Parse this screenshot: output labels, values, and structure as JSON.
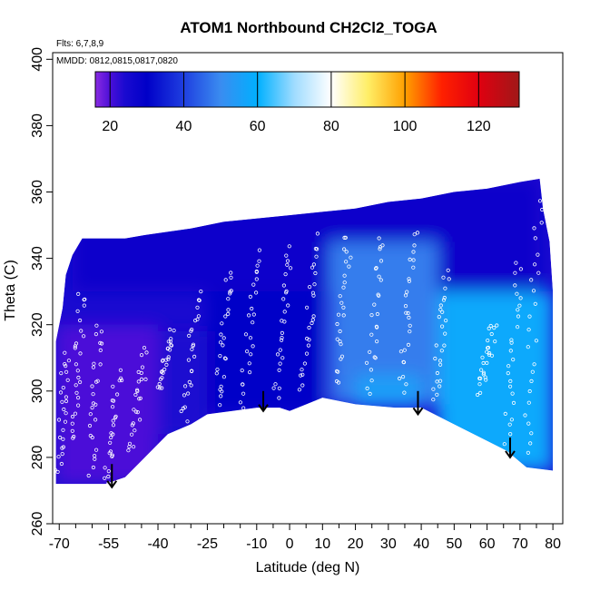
{
  "chart_data": {
    "type": "heatmap",
    "title": "ATOM1 Northbound CH2Cl2_TOGA",
    "flights_note": "Flts: 6,7,8,9",
    "dates_note": "MMDD: 0812,0815,0817,0820",
    "xlabel": "Latitude (deg N)",
    "ylabel": "Theta (C)",
    "xlim": [
      -72,
      83
    ],
    "ylim": [
      260,
      402
    ],
    "x_ticks_major": [
      -70,
      -55,
      -40,
      -25,
      -10,
      0,
      10,
      20,
      30,
      40,
      50,
      60,
      70,
      80
    ],
    "x_tick_labels": [
      "-70",
      "-55",
      "-40",
      "-25",
      "-10",
      "0",
      "10",
      "20",
      "30",
      "40",
      "50",
      "60",
      "70",
      "80"
    ],
    "x_ticks_minor": [
      -65,
      -60,
      -50,
      -45,
      -35,
      -30,
      -20,
      -15,
      -5,
      5,
      15,
      25,
      35,
      45,
      55,
      65,
      75
    ],
    "y_ticks": [
      260,
      280,
      300,
      320,
      340,
      360,
      380,
      400
    ],
    "y_tick_labels": [
      "260",
      "280",
      "300",
      "320",
      "340",
      "360",
      "380",
      "400"
    ],
    "colorbar": {
      "range": [
        16,
        131
      ],
      "ticks": [
        20,
        40,
        60,
        80,
        100,
        120
      ],
      "tick_labels": [
        "20",
        "40",
        "60",
        "80",
        "100",
        "120"
      ],
      "major_lines": [
        20,
        40,
        60,
        80,
        100,
        120
      ],
      "stops": [
        {
          "v": 16,
          "c": "#8a2be2"
        },
        {
          "v": 20,
          "c": "#4b0fd8"
        },
        {
          "v": 24,
          "c": "#1a0ad0"
        },
        {
          "v": 30,
          "c": "#0000c8"
        },
        {
          "v": 40,
          "c": "#1f3fe0"
        },
        {
          "v": 50,
          "c": "#3a8cf0"
        },
        {
          "v": 60,
          "c": "#00b0ff"
        },
        {
          "v": 70,
          "c": "#a0dcff"
        },
        {
          "v": 80,
          "c": "#ffffff"
        },
        {
          "v": 90,
          "c": "#ffee66"
        },
        {
          "v": 100,
          "c": "#ffa000"
        },
        {
          "v": 110,
          "c": "#ff2000"
        },
        {
          "v": 120,
          "c": "#e00010"
        },
        {
          "v": 131,
          "c": "#a01818"
        }
      ]
    },
    "field_lower_boundary": [
      [
        -71,
        272
      ],
      [
        -56,
        272
      ],
      [
        -50,
        274
      ],
      [
        -47,
        277
      ],
      [
        -37,
        287
      ],
      [
        -30,
        290
      ],
      [
        -25,
        293
      ],
      [
        -10,
        295
      ],
      [
        -3,
        295
      ],
      [
        0,
        294
      ],
      [
        10,
        298
      ],
      [
        20,
        296
      ],
      [
        32,
        295
      ],
      [
        40,
        295
      ],
      [
        50,
        290
      ],
      [
        60,
        285
      ],
      [
        66,
        282
      ],
      [
        72,
        277
      ],
      [
        80,
        276
      ]
    ],
    "field_upper_boundary": [
      [
        -71,
        315
      ],
      [
        -69,
        325
      ],
      [
        -68,
        335
      ],
      [
        -66,
        341
      ],
      [
        -63,
        346
      ],
      [
        -50,
        346
      ],
      [
        -44,
        347
      ],
      [
        -30,
        349
      ],
      [
        -20,
        351
      ],
      [
        -10,
        352
      ],
      [
        0,
        353
      ],
      [
        10,
        354
      ],
      [
        20,
        355
      ],
      [
        30,
        357
      ],
      [
        40,
        358
      ],
      [
        50,
        360
      ],
      [
        60,
        361
      ],
      [
        70,
        363
      ],
      [
        76,
        364
      ],
      [
        77,
        355
      ],
      [
        79,
        345
      ],
      [
        80,
        330
      ]
    ],
    "field_regions": [
      {
        "name": "southern-low",
        "lat_range": [
          -71,
          -40
        ],
        "theta_range": [
          272,
          320
        ],
        "value": 20
      },
      {
        "name": "southern-mid",
        "lat_range": [
          -40,
          -25
        ],
        "theta_range": [
          287,
          318
        ],
        "value": 24
      },
      {
        "name": "upper-band",
        "lat_range": [
          -66,
          76
        ],
        "theta_range": [
          330,
          364
        ],
        "value": 28
      },
      {
        "name": "tropics-low",
        "lat_range": [
          -25,
          10
        ],
        "theta_range": [
          293,
          330
        ],
        "value": 30
      },
      {
        "name": "northern-tropics",
        "lat_range": [
          12,
          45
        ],
        "theta_range": [
          296,
          345
        ],
        "value": 48
      },
      {
        "name": "northern-low",
        "lat_range": [
          20,
          40
        ],
        "theta_range": [
          295,
          305
        ],
        "value": 55
      },
      {
        "name": "high-north",
        "lat_range": [
          45,
          80
        ],
        "theta_range": [
          276,
          330
        ],
        "value": 58
      }
    ],
    "arrows": [
      {
        "lat": -54,
        "theta_top": 278,
        "theta_tip": 271
      },
      {
        "lat": -8,
        "theta_top": 300,
        "theta_tip": 294
      },
      {
        "lat": 39,
        "theta_top": 300,
        "theta_tip": 293
      },
      {
        "lat": 67,
        "theta_top": 286,
        "theta_tip": 280
      }
    ],
    "sample_tracks": [
      {
        "lat_start": -70,
        "lat_end": -68,
        "theta_start": 275,
        "theta_end": 312
      },
      {
        "lat_start": -66,
        "lat_end": -63,
        "theta_start": 285,
        "theta_end": 330
      },
      {
        "lat_start": -60,
        "lat_end": -58,
        "theta_start": 276,
        "theta_end": 320
      },
      {
        "lat_start": -56,
        "lat_end": -52,
        "theta_start": 272,
        "theta_end": 306
      },
      {
        "lat_start": -48,
        "lat_end": -44,
        "theta_start": 282,
        "theta_end": 312
      },
      {
        "lat_start": -40,
        "lat_end": -36,
        "theta_start": 300,
        "theta_end": 318
      },
      {
        "lat_start": -32,
        "lat_end": -28,
        "theta_start": 292,
        "theta_end": 330
      },
      {
        "lat_start": -22,
        "lat_end": -18,
        "theta_start": 296,
        "theta_end": 336
      },
      {
        "lat_start": -14,
        "lat_end": -10,
        "theta_start": 296,
        "theta_end": 342
      },
      {
        "lat_start": -4,
        "lat_end": 0,
        "theta_start": 298,
        "theta_end": 344
      },
      {
        "lat_start": 4,
        "lat_end": 8,
        "theta_start": 300,
        "theta_end": 346
      },
      {
        "lat_start": 14,
        "lat_end": 18,
        "theta_start": 302,
        "theta_end": 347
      },
      {
        "lat_start": 24,
        "lat_end": 28,
        "theta_start": 300,
        "theta_end": 347
      },
      {
        "lat_start": 34,
        "lat_end": 38,
        "theta_start": 300,
        "theta_end": 348
      },
      {
        "lat_start": 44,
        "lat_end": 48,
        "theta_start": 296,
        "theta_end": 336
      },
      {
        "lat_start": 58,
        "lat_end": 62,
        "theta_start": 300,
        "theta_end": 320
      },
      {
        "lat_start": 66,
        "lat_end": 70,
        "theta_start": 282,
        "theta_end": 340
      },
      {
        "lat_start": 72,
        "lat_end": 76,
        "theta_start": 280,
        "theta_end": 362
      }
    ]
  },
  "colors": {
    "axis": "#000000",
    "marker": "#ffffff",
    "arrow": "#000000",
    "background": "#ffffff"
  }
}
